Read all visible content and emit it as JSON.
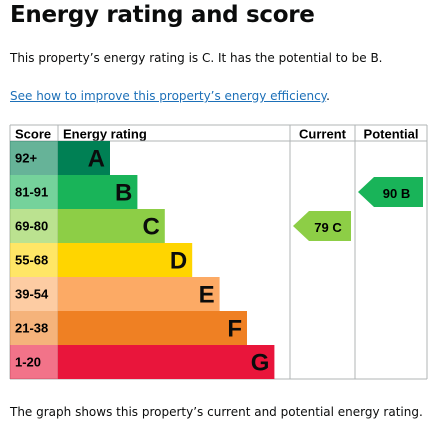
{
  "header": {
    "title": "Energy rating and score"
  },
  "intro": "This property’s energy rating is C. It has the potential to be B.",
  "link": {
    "text": "See how to improve this property’s energy efficiency",
    "suffix": "."
  },
  "table": {
    "columns": [
      "Score",
      "Energy rating",
      "Current",
      "Potential"
    ],
    "bands": [
      {
        "score": "92+",
        "letter": "A",
        "color": "#008054"
      },
      {
        "score": "81-91",
        "letter": "B",
        "color": "#19b459"
      },
      {
        "score": "69-80",
        "letter": "C",
        "color": "#8dce46"
      },
      {
        "score": "55-68",
        "letter": "D",
        "color": "#ffd500"
      },
      {
        "score": "39-54",
        "letter": "E",
        "color": "#fcaa65"
      },
      {
        "score": "21-38",
        "letter": "F",
        "color": "#ef8023"
      },
      {
        "score": "1-20",
        "letter": "G",
        "color": "#e9153b"
      }
    ],
    "current": {
      "value": 79,
      "letter": "C"
    },
    "potential": {
      "value": 90,
      "letter": "B"
    }
  },
  "footer": "The graph shows this property’s current and potential energy rating."
}
